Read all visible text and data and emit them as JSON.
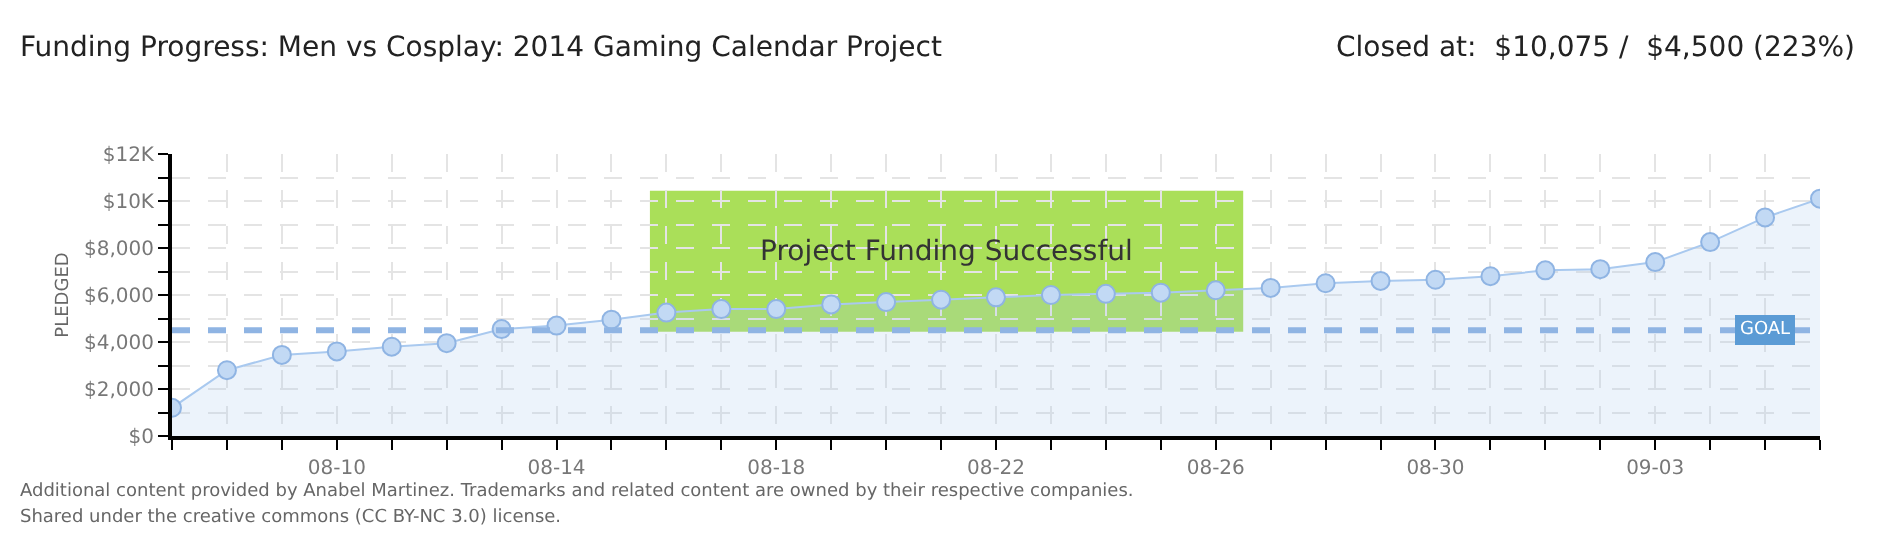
{
  "chart_data": {
    "type": "area",
    "title": "Funding Progress: Men vs Cosplay: 2014 Gaming Calendar Project",
    "subtitle": "Closed at:  $10,075 /  $4,500 (223%)",
    "ylabel": "PLEDGED",
    "x": [
      "2014-08-07",
      "2014-08-08",
      "2014-08-09",
      "2014-08-10",
      "2014-08-11",
      "2014-08-12",
      "2014-08-13",
      "2014-08-14",
      "2014-08-15",
      "2014-08-16",
      "2014-08-17",
      "2014-08-18",
      "2014-08-19",
      "2014-08-20",
      "2014-08-21",
      "2014-08-22",
      "2014-08-23",
      "2014-08-24",
      "2014-08-25",
      "2014-08-26",
      "2014-08-27",
      "2014-08-28",
      "2014-08-29",
      "2014-08-30",
      "2014-08-31",
      "2014-09-01",
      "2014-09-02",
      "2014-09-03",
      "2014-09-04",
      "2014-09-05",
      "2014-09-06"
    ],
    "series": [
      {
        "color": "#a9c9ef",
        "values": [
          1200,
          2800,
          3450,
          3600,
          3800,
          3950,
          4550,
          4700,
          4950,
          5250,
          5400,
          5400,
          5600,
          5700,
          5800,
          5900,
          6000,
          6050,
          6100,
          6200,
          6300,
          6500,
          6600,
          6650,
          6800,
          7050,
          7100,
          7400,
          8250,
          9300,
          10100
        ]
      }
    ],
    "xlim": [
      "2014-08-07",
      "2014-09-06"
    ],
    "xticks": [
      {
        "value": "2014-08-07",
        "label": null
      },
      {
        "value": "2014-08-08",
        "label": null
      },
      {
        "value": "2014-08-09",
        "label": null
      },
      {
        "value": "2014-08-10",
        "label": "08-10"
      },
      {
        "value": "2014-08-11",
        "label": null
      },
      {
        "value": "2014-08-12",
        "label": null
      },
      {
        "value": "2014-08-13",
        "label": null
      },
      {
        "value": "2014-08-14",
        "label": "08-14"
      },
      {
        "value": "2014-08-15",
        "label": null
      },
      {
        "value": "2014-08-16",
        "label": null
      },
      {
        "value": "2014-08-17",
        "label": null
      },
      {
        "value": "2014-08-18",
        "label": "08-18"
      },
      {
        "value": "2014-08-19",
        "label": null
      },
      {
        "value": "2014-08-20",
        "label": null
      },
      {
        "value": "2014-08-21",
        "label": null
      },
      {
        "value": "2014-08-22",
        "label": "08-22"
      },
      {
        "value": "2014-08-23",
        "label": null
      },
      {
        "value": "2014-08-24",
        "label": null
      },
      {
        "value": "2014-08-25",
        "label": null
      },
      {
        "value": "2014-08-26",
        "label": "08-26"
      },
      {
        "value": "2014-08-27",
        "label": null
      },
      {
        "value": "2014-08-28",
        "label": null
      },
      {
        "value": "2014-08-29",
        "label": null
      },
      {
        "value": "2014-08-30",
        "label": "08-30"
      },
      {
        "value": "2014-08-31",
        "label": null
      },
      {
        "value": "2014-09-01",
        "label": null
      },
      {
        "value": "2014-09-02",
        "label": null
      },
      {
        "value": "2014-09-03",
        "label": "09-03"
      },
      {
        "value": "2014-09-04",
        "label": null
      },
      {
        "value": "2014-09-05",
        "label": null
      },
      {
        "value": "2014-09-06",
        "label": null
      }
    ],
    "ylim": [
      0,
      12000
    ],
    "yticks": [
      {
        "value": 0,
        "label": "$0"
      },
      {
        "value": 1000,
        "label": null
      },
      {
        "value": 2000,
        "label": "$2,000"
      },
      {
        "value": 3000,
        "label": null
      },
      {
        "value": 4000,
        "label": "$4,000"
      },
      {
        "value": 5000,
        "label": null
      },
      {
        "value": 6000,
        "label": "$6,000"
      },
      {
        "value": 7000,
        "label": null
      },
      {
        "value": 8000,
        "label": "$8,000"
      },
      {
        "value": 9000,
        "label": null
      },
      {
        "value": 10000,
        "label": "$10K"
      },
      {
        "value": 11000,
        "label": null
      },
      {
        "value": 12000,
        "label": "$12K"
      }
    ],
    "ref_lines": [
      {
        "axis": "y",
        "value": 4500,
        "label": "GOAL",
        "color": "#8fb4e3",
        "line_style": "dashed"
      }
    ],
    "annotations": [
      "Project Funding Successful",
      "Additional content provided by Anabel Martinez. Trademarks and related content are owned by their respective companies.",
      "Shared under the creative commons (CC BY-NC 3.0) license."
    ],
    "grid": true,
    "marker": "circle",
    "line_style": "solid"
  }
}
